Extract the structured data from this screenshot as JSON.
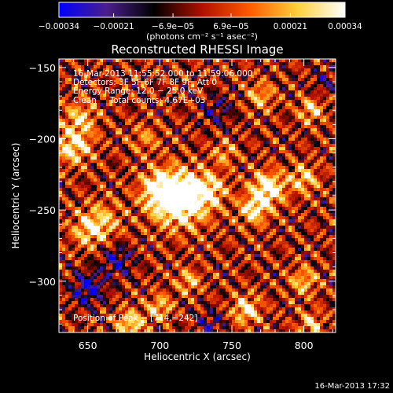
{
  "chart_data": {
    "type": "heatmap",
    "title": "Reconstructed RHESSI Image",
    "xlabel": "Heliocentric X (arcsec)",
    "ylabel": "Heliocentric Y (arcsec)",
    "xlim": [
      630,
      822
    ],
    "ylim": [
      -336,
      -144
    ],
    "x_ticks": [
      650,
      700,
      750,
      800
    ],
    "y_ticks": [
      -150,
      -200,
      -250,
      -300
    ],
    "grid": false,
    "colorbar": {
      "min": -0.00034,
      "max": 0.00034,
      "tick_values": [
        -0.00034,
        -0.00021,
        -6.9e-05,
        6.9e-05,
        0.00021,
        0.00034
      ],
      "tick_labels": [
        "−0.00034",
        "−0.00021",
        "−6.9e−05",
        "6.9e−05",
        "0.00021",
        "0.00034"
      ],
      "units_label": "(photons cm⁻² s⁻¹ asec⁻²)",
      "colors": [
        "#0000ff",
        "#4b1f8c",
        "#000000",
        "#b01000",
        "#ff5a00",
        "#ffd03a",
        "#ffffff"
      ]
    },
    "annotations": [
      "16-Mar-2013 11:55:52.000 to 11:59:06.000",
      "Detectors: 3F 5F 6F 7F 8F 9F, Att 0",
      "Energy Range: 12.0 − 25.0 keV",
      "Clean     Total counts: 4.67E+03"
    ],
    "peak_label": "Position of Peak = [714,−242]",
    "timestamp": "16-Mar-2013 17:32",
    "features": [
      {
        "x": 714,
        "y": -242,
        "amp": 0.00052,
        "sigma": 13
      },
      {
        "x": 700,
        "y": -236,
        "amp": 0.0003,
        "sigma": 9
      },
      {
        "x": 735,
        "y": -236,
        "amp": 0.00025,
        "sigma": 8
      },
      {
        "x": 660,
        "y": -258,
        "amp": 0.0002,
        "sigma": 10
      },
      {
        "x": 640,
        "y": -205,
        "amp": 0.0003,
        "sigma": 9
      },
      {
        "x": 645,
        "y": -185,
        "amp": 0.00022,
        "sigma": 8
      },
      {
        "x": 650,
        "y": -265,
        "amp": 0.0002,
        "sigma": 8
      },
      {
        "x": 680,
        "y": -330,
        "amp": 0.00028,
        "sigma": 7
      },
      {
        "x": 700,
        "y": -318,
        "amp": 0.00024,
        "sigma": 6
      },
      {
        "x": 720,
        "y": -300,
        "amp": 0.00022,
        "sigma": 6
      },
      {
        "x": 775,
        "y": -235,
        "amp": 0.0004,
        "sigma": 8
      },
      {
        "x": 765,
        "y": -250,
        "amp": 0.0003,
        "sigma": 7
      },
      {
        "x": 770,
        "y": -170,
        "amp": 0.0002,
        "sigma": 7
      },
      {
        "x": 805,
        "y": -180,
        "amp": 0.00025,
        "sigma": 6
      },
      {
        "x": 800,
        "y": -228,
        "amp": 0.00025,
        "sigma": 7
      },
      {
        "x": 800,
        "y": -300,
        "amp": 0.00022,
        "sigma": 7
      },
      {
        "x": 760,
        "y": -320,
        "amp": 0.0003,
        "sigma": 7
      },
      {
        "x": 805,
        "y": -330,
        "amp": 0.00024,
        "sigma": 6
      },
      {
        "x": 745,
        "y": -210,
        "amp": 0.00018,
        "sigma": 6
      },
      {
        "x": 690,
        "y": -200,
        "amp": 0.00015,
        "sigma": 7
      },
      {
        "x": 670,
        "y": -285,
        "amp": -0.0002,
        "sigma": 8
      },
      {
        "x": 650,
        "y": -305,
        "amp": -0.00026,
        "sigma": 8
      },
      {
        "x": 735,
        "y": -330,
        "amp": -0.00016,
        "sigma": 7
      },
      {
        "x": 740,
        "y": -180,
        "amp": -0.00014,
        "sigma": 8
      },
      {
        "x": 815,
        "y": -160,
        "amp": -0.00012,
        "sigma": 6
      }
    ]
  }
}
